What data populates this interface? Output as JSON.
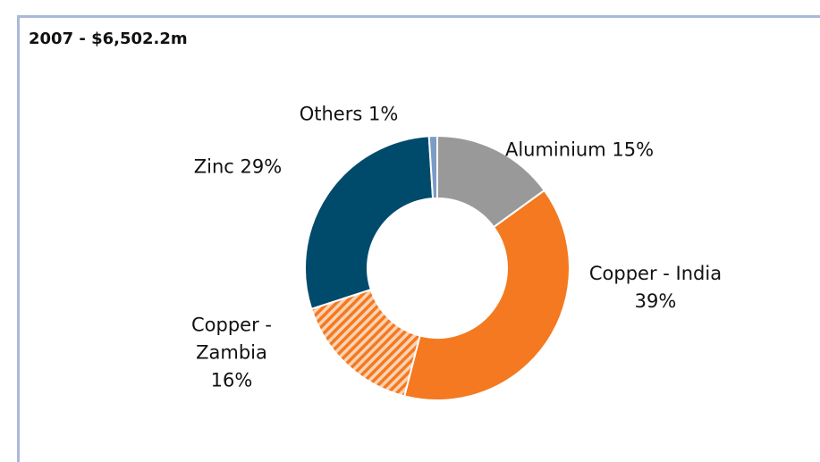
{
  "chart_data": {
    "type": "donut",
    "title": "2007 - $6,502.2m",
    "categories": [
      "Aluminium",
      "Copper - India",
      "Copper - Zambia",
      "Zinc",
      "Others"
    ],
    "values": [
      15,
      39,
      16,
      29,
      1
    ],
    "value_labels": [
      "15%",
      "39%",
      "16%",
      "29%",
      "1%"
    ],
    "colors": [
      "#999999",
      "#f47920",
      "#f47920",
      "#004b6b",
      "#7a9cc6"
    ],
    "hatched": [
      false,
      false,
      true,
      false,
      false
    ]
  }
}
